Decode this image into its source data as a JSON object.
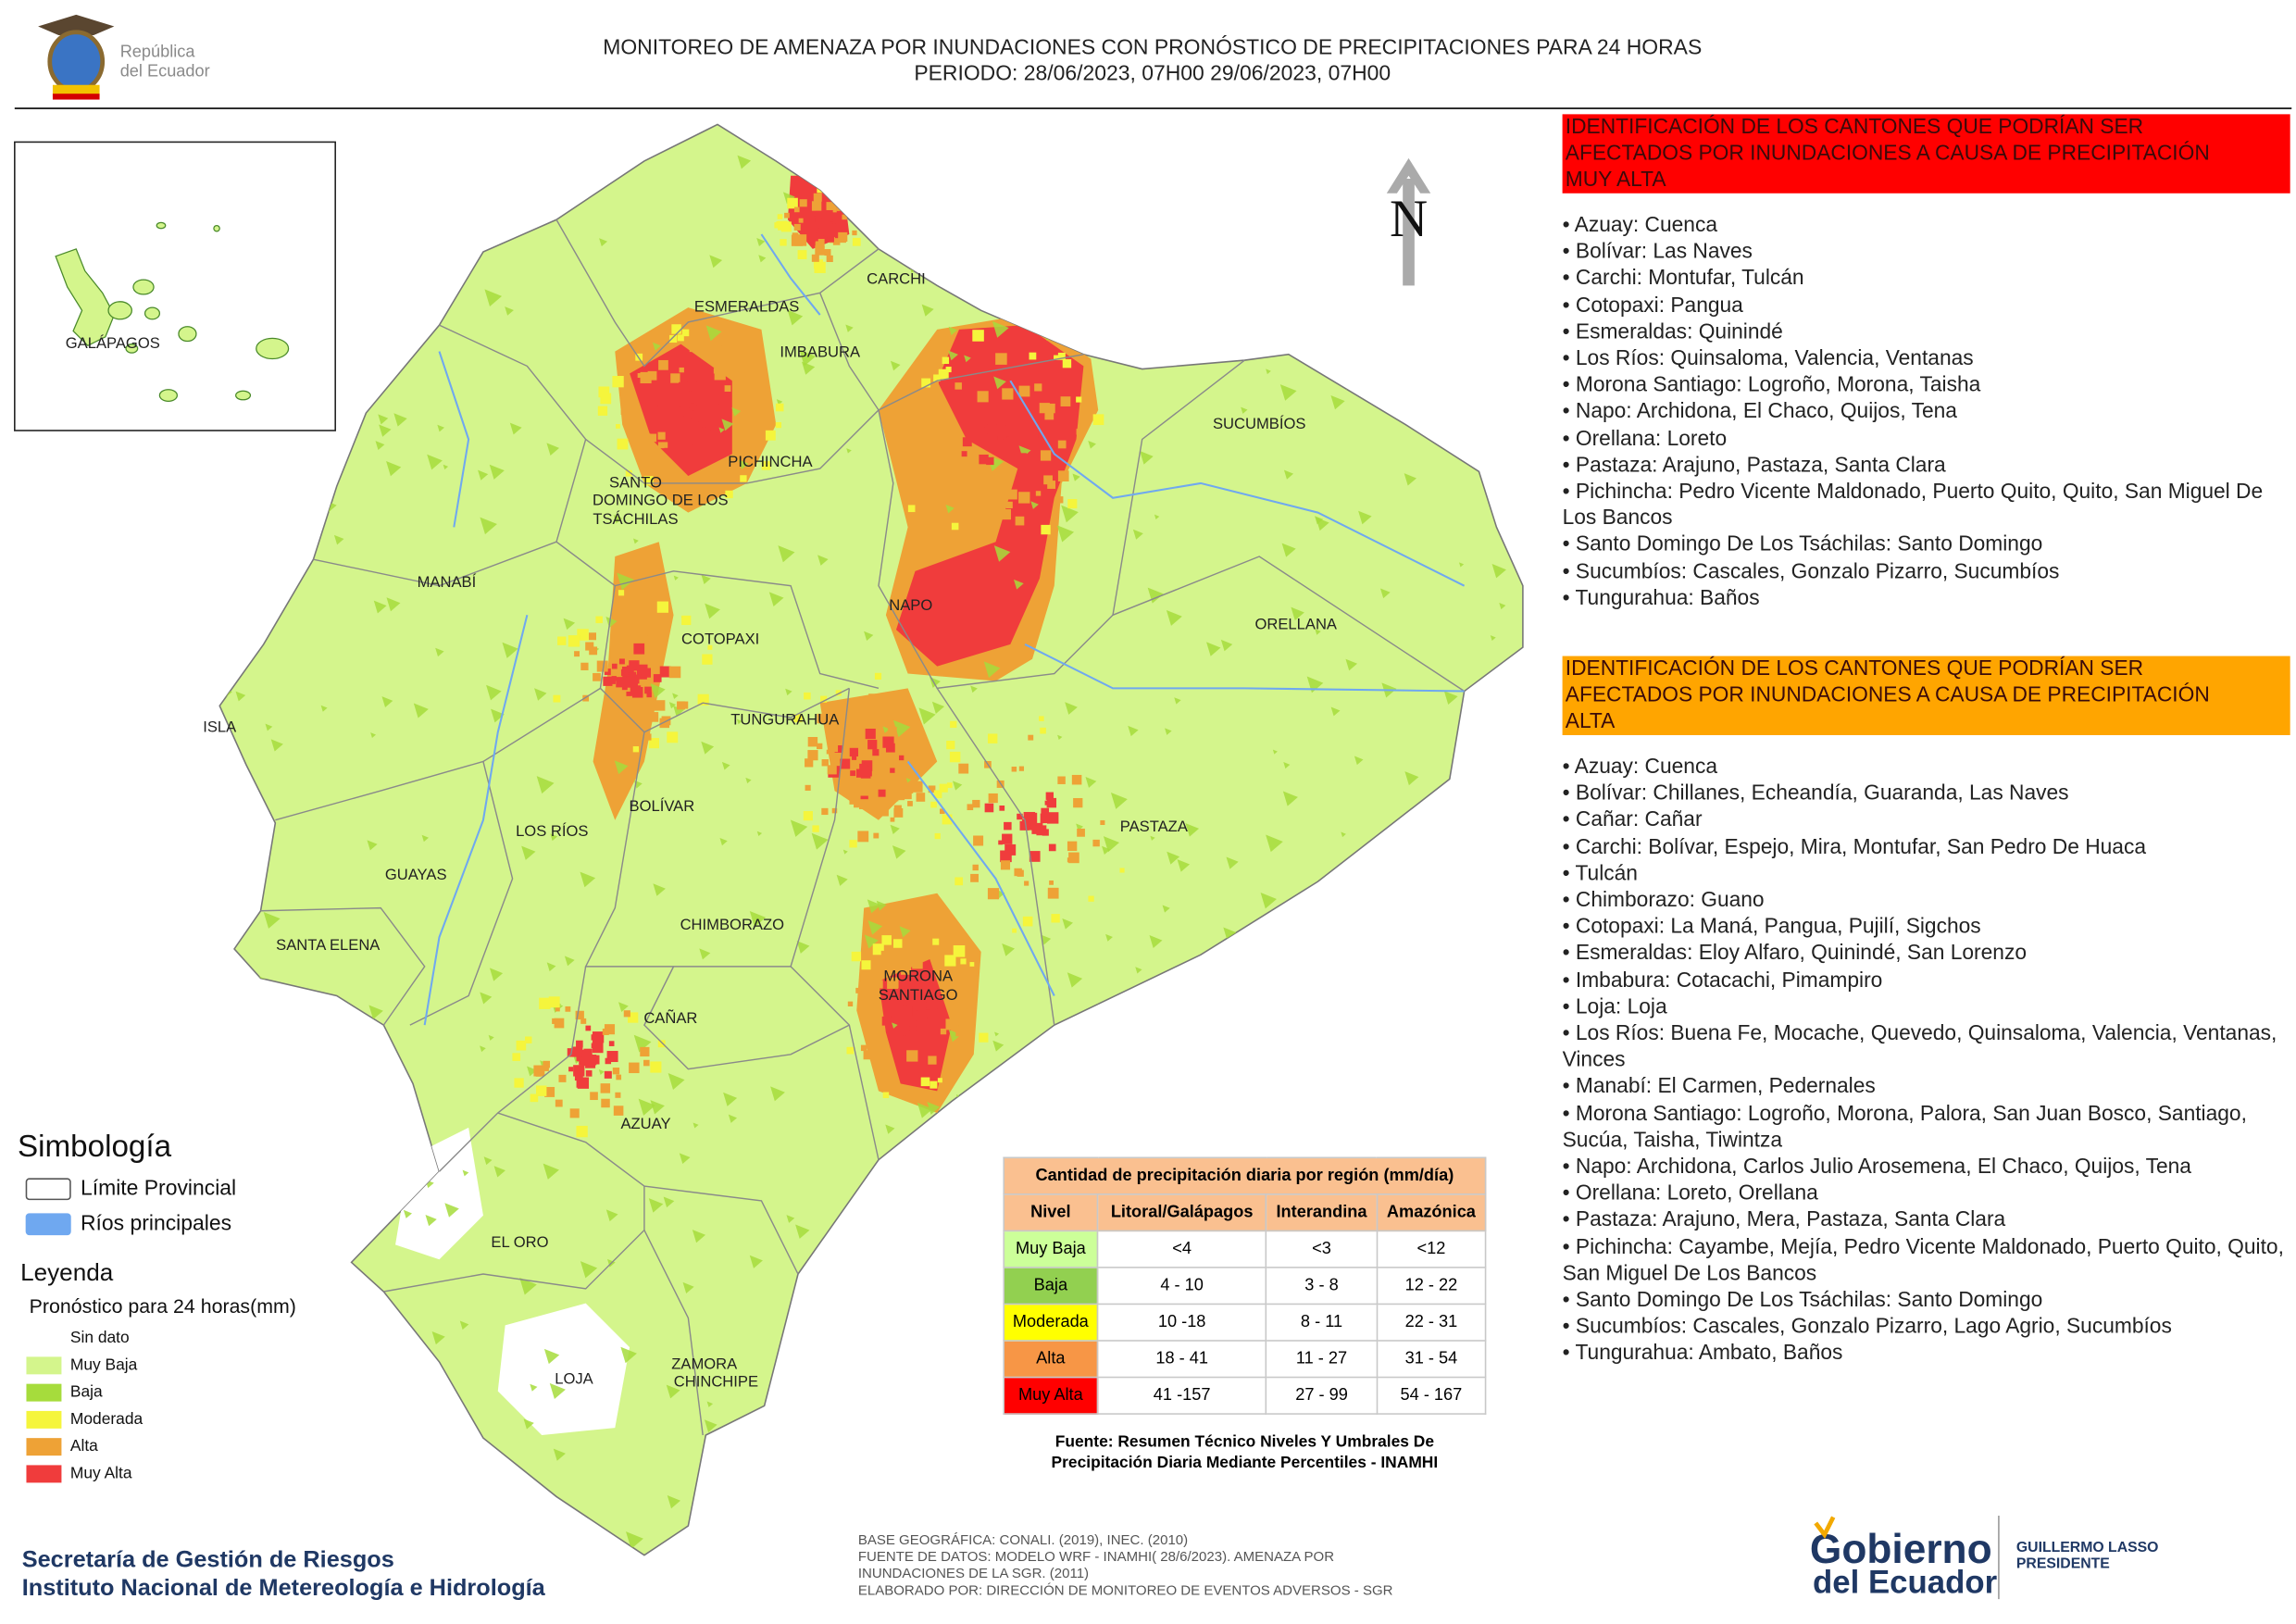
{
  "header": {
    "logo_line1": "República",
    "logo_line2": "del Ecuador",
    "title_line1": "MONITOREO DE AMENAZA POR INUNDACIONES  CON PRONÓSTICO DE  PRECIPITACIONES PARA 24 HORAS",
    "title_line2": "PERIODO: 28/06/2023, 07H00 29/06/2023, 07H00"
  },
  "map": {
    "north": "N",
    "inset_label": "GALÁPAGOS",
    "labels": [
      "ESMERALDAS",
      "CARCHI",
      "IMBABURA",
      "SUCUMBÍOS",
      "PICHINCHA",
      "SANTO",
      "DOMINGO DE LOS",
      "TSÁCHILAS",
      "MANABÍ",
      "NAPO",
      "ORELLANA",
      "COTOPAXI",
      "ISLA",
      "TUNGURAHUA",
      "BOLÍVAR",
      "LOS RÍOS",
      "PASTAZA",
      "GUAYAS",
      "CHIMBORAZO",
      "SANTA ELENA",
      "MORONA",
      "SANTIAGO",
      "CAÑAR",
      "AZUAY",
      "EL ORO",
      "ZAMORA",
      "CHINCHIPE",
      "LOJA"
    ]
  },
  "very_high_panel": {
    "heading": [
      "IDENTIFICACIÓN DE LOS CANTONES QUE PODRÍAN SER",
      "AFECTADOS POR INUNDACIONES  A CAUSA DE PRECIPITACIÓN",
      "MUY ALTA"
    ],
    "items": [
      "• Azuay: Cuenca",
      "• Bolívar: Las Naves",
      "• Carchi: Montufar, Tulcán",
      "• Cotopaxi: Pangua",
      "• Esmeraldas: Quinindé",
      "• Los Ríos: Quinsaloma, Valencia, Ventanas",
      "• Morona Santiago: Logroño, Morona, Taisha",
      "• Napo: Archidona, El Chaco, Quijos, Tena",
      "• Orellana: Loreto",
      "• Pastaza: Arajuno, Pastaza, Santa Clara",
      "• Pichincha: Pedro Vicente Maldonado, Puerto Quito, Quito, San Miguel De Los Bancos",
      "• Santo Domingo De Los Tsáchilas: Santo Domingo",
      "• Sucumbíos: Cascales, Gonzalo Pizarro, Sucumbíos",
      "• Tungurahua: Baños"
    ]
  },
  "high_panel": {
    "heading": [
      "IDENTIFICACIÓN DE LOS CANTONES QUE  PODRÍAN SER",
      "AFECTADOS POR INUNDACIONES  A CAUSA DE PRECIPITACIÓN",
      "ALTA"
    ],
    "items": [
      "• Azuay: Cuenca",
      "• Bolívar: Chillanes, Echeandía, Guaranda, Las Naves",
      "• Cañar: Cañar",
      "• Carchi: Bolívar, Espejo, Mira, Montufar, San Pedro De Huaca",
      "• Tulcán",
      "• Chimborazo: Guano",
      "• Cotopaxi: La Maná, Pangua, Pujilí, Sigchos",
      "• Esmeraldas: Eloy Alfaro, Quinindé, San Lorenzo",
      "• Imbabura: Cotacachi, Pimampiro",
      "• Loja: Loja",
      "• Los Ríos: Buena Fe, Mocache, Quevedo, Quinsaloma, Valencia, Ventanas, Vinces",
      "• Manabí: El Carmen, Pedernales",
      "• Morona Santiago: Logroño, Morona, Palora, San Juan Bosco, Santiago, Sucúa, Taisha, Tiwintza",
      "• Napo: Archidona, Carlos Julio Arosemena, El Chaco, Quijos, Tena",
      "• Orellana: Loreto, Orellana",
      "• Pastaza: Arajuno, Mera, Pastaza, Santa Clara",
      "• Pichincha: Cayambe, Mejía, Pedro Vicente Maldonado, Puerto Quito, Quito, San Miguel De Los Bancos",
      "• Santo Domingo De Los Tsáchilas: Santo Domingo",
      "• Sucumbíos: Cascales, Gonzalo Pizarro, Lago Agrio, Sucumbíos",
      "• Tungurahua: Ambato, Baños"
    ]
  },
  "legend": {
    "symbology_title": "Simbología",
    "symbols": [
      {
        "label": "Límite Provincial",
        "color": "#ffffff"
      },
      {
        "label": "Ríos principales",
        "color": "#6fa8f0"
      }
    ],
    "title": "Leyenda",
    "subtitle": "Pronóstico para 24 horas(mm)",
    "classes": [
      {
        "label": "Sin dato",
        "color": "#ffffff"
      },
      {
        "label": "Muy Baja",
        "color": "#d4f58c"
      },
      {
        "label": "Baja",
        "color": "#a6dc3c"
      },
      {
        "label": "Moderada",
        "color": "#f5f53c"
      },
      {
        "label": "Alta",
        "color": "#eea236"
      },
      {
        "label": "Muy Alta",
        "color": "#f03c3c"
      }
    ]
  },
  "table": {
    "title": "Cantidad de precipitación diaria por región (mm/día)",
    "headers": [
      "Nivel",
      "Litoral/Galápagos",
      "Interandina",
      "Amazónica"
    ],
    "rows": [
      {
        "level": "Muy Baja",
        "color": "#ccff99",
        "cells": [
          "<4",
          "<3",
          "<12"
        ]
      },
      {
        "level": "Baja",
        "color": "#92d050",
        "cells": [
          "4 - 10",
          "3 - 8",
          "12 - 22"
        ]
      },
      {
        "level": "Moderada",
        "color": "#ffff00",
        "cells": [
          "10 -18",
          "8 - 11",
          "22 - 31"
        ]
      },
      {
        "level": "Alta",
        "color": "#f79646",
        "cells": [
          "18 - 41",
          "11 - 27",
          "31 - 54"
        ]
      },
      {
        "level": "Muy Alta",
        "color": "#ff0000",
        "cells": [
          "41 -157",
          "27 - 99",
          "54 - 167"
        ]
      }
    ],
    "source": [
      "Fuente: Resumen Técnico Niveles Y Umbrales De",
      "Precipitación Diaria Mediante Percentiles - INAMHI"
    ]
  },
  "footer": {
    "org_line1": "Secretaría de Gestión de Riesgos",
    "org_line2": "Instituto Nacional de Metereología e Hidrología",
    "notes": [
      "BASE GEOGRÁFICA: CONALI. (2019), INEC. (2010)",
      "FUENTE DE DATOS: MODELO WRF - INAMHI( 28/6/2023).  AMENAZA POR",
      "INUNDACIONES DE LA SGR. (2011)",
      "ELABORADO POR: DIRECCIÓN DE MONITOREO DE EVENTOS ADVERSOS - SGR"
    ],
    "gov_line1": "Gobierno",
    "gov_line2": "del Ecuador",
    "president_name": "GUILLERMO LASSO",
    "president_title": "PRESIDENTE"
  }
}
